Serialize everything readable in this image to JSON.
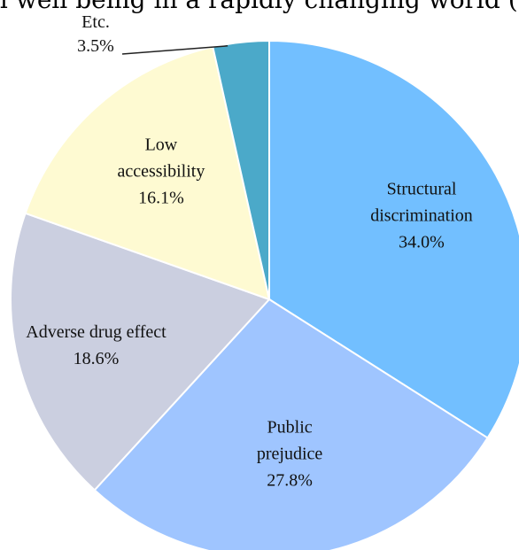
{
  "header_text": "l well being in a rapidly changing world (",
  "chart_data": {
    "type": "pie",
    "start_angle_deg": 0,
    "direction": "clockwise",
    "slices": [
      {
        "name": "Structural discrimination",
        "label_lines": [
          "Structural",
          "discrimination"
        ],
        "value": 34.0,
        "value_label": "34.0%",
        "color": "#72bfff"
      },
      {
        "name": "Public prejudice",
        "label_lines": [
          "Public",
          "prejudice"
        ],
        "value": 27.8,
        "value_label": "27.8%",
        "color": "#9fc5ff"
      },
      {
        "name": "Adverse drug effect",
        "label_lines": [
          "Adverse drug effect"
        ],
        "value": 18.6,
        "value_label": "18.6%",
        "color": "#cbcfe0"
      },
      {
        "name": "Low accessibility",
        "label_lines": [
          "Low",
          "accessibility"
        ],
        "value": 16.1,
        "value_label": "16.1%",
        "color": "#fefad2"
      },
      {
        "name": "Etc.",
        "label_lines": [
          "Etc."
        ],
        "value": 3.5,
        "value_label": "3.5%",
        "color": "#4ba9c9",
        "external_label": true
      }
    ]
  }
}
